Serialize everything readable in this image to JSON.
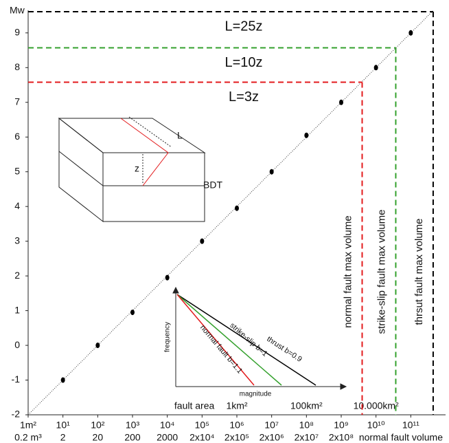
{
  "chart_data": {
    "type": "scatter",
    "y_label": "Mw",
    "xscale": "log",
    "xlim": [
      1,
      1000000000000.0
    ],
    "ylim": [
      -2,
      9.65
    ],
    "yticks": [
      -2,
      -1,
      0,
      1,
      2,
      3,
      4,
      5,
      6,
      7,
      8,
      9
    ],
    "xticks": [
      {
        "value": 1,
        "label": "1m²"
      },
      {
        "value": 10,
        "label": "10¹"
      },
      {
        "value": 100,
        "label": "10²"
      },
      {
        "value": 1000,
        "label": "10³"
      },
      {
        "value": 10000,
        "label": "10⁴"
      },
      {
        "value": 100000,
        "label": "10⁵"
      },
      {
        "value": 1000000,
        "label": "10⁶"
      },
      {
        "value": 10000000,
        "label": "10⁷"
      },
      {
        "value": 100000000,
        "label": "10⁸"
      },
      {
        "value": 1000000000,
        "label": "10⁹"
      },
      {
        "value": 10000000000,
        "label": "10¹⁰"
      },
      {
        "value": 100000000000,
        "label": "10¹¹"
      }
    ],
    "x_label": "fault area",
    "area_km_labels": [
      {
        "value": 1000000,
        "label": "1km²"
      },
      {
        "value": 100000000,
        "label": "100km²"
      },
      {
        "value": 10000000000,
        "label": "10.000km²"
      }
    ],
    "x2lim": [
      0.2,
      200000000000.0
    ],
    "x2ticks": [
      {
        "value": 0.2,
        "label": "0.2 m³"
      },
      {
        "value": 2,
        "label": "2"
      },
      {
        "value": 20,
        "label": "20"
      },
      {
        "value": 200,
        "label": "200"
      },
      {
        "value": 2000,
        "label": "2000"
      },
      {
        "value": 20000,
        "label": "2x10⁴"
      },
      {
        "value": 200000,
        "label": "2x10⁵"
      },
      {
        "value": 2000000,
        "label": "2x10⁶"
      },
      {
        "value": 20000000,
        "label": "2x10⁷"
      },
      {
        "value": 200000000,
        "label": "2x10⁸"
      }
    ],
    "x2_label": "normal fault volume",
    "series": [
      {
        "color": "#000000",
        "x": [
          10,
          100,
          1000,
          10000,
          100000,
          1000000,
          10000000,
          100000000,
          1000000000,
          10000000000,
          100000000000
        ],
        "values": [
          -1,
          0,
          0.95,
          1.95,
          3,
          3.95,
          5,
          6.05,
          7,
          8,
          9
        ]
      }
    ],
    "reference_line": {
      "x": [
        1,
        450000000000
      ],
      "values": [
        -2,
        9.65
      ]
    },
    "limits": [
      {
        "label": "L=25z",
        "volume_label": "thrsut fault max volume",
        "color": "#000000",
        "y": 9.61,
        "x": 440000000000
      },
      {
        "label": "L=10z",
        "volume_label": "strike-slip fault max volume",
        "color": "#33a02c",
        "y": 8.57,
        "x": 37000000000
      },
      {
        "label": "L=3z",
        "volume_label": "normal fault max volume",
        "color": "#e31a1c",
        "y": 7.58,
        "x": 4000000000
      }
    ],
    "block_inset": {
      "length_label": "L",
      "depth_label": "z",
      "bdt_label": "BDT"
    },
    "b_inset": {
      "y_label": "frequency",
      "x_label": "magnitude",
      "lines": [
        {
          "label": "thrust b=0.9",
          "color": "#000000"
        },
        {
          "label": "strike-slip b=1",
          "color": "#33a02c"
        },
        {
          "label": "normal fault b=1.1",
          "color": "#e31a1c"
        }
      ]
    }
  }
}
